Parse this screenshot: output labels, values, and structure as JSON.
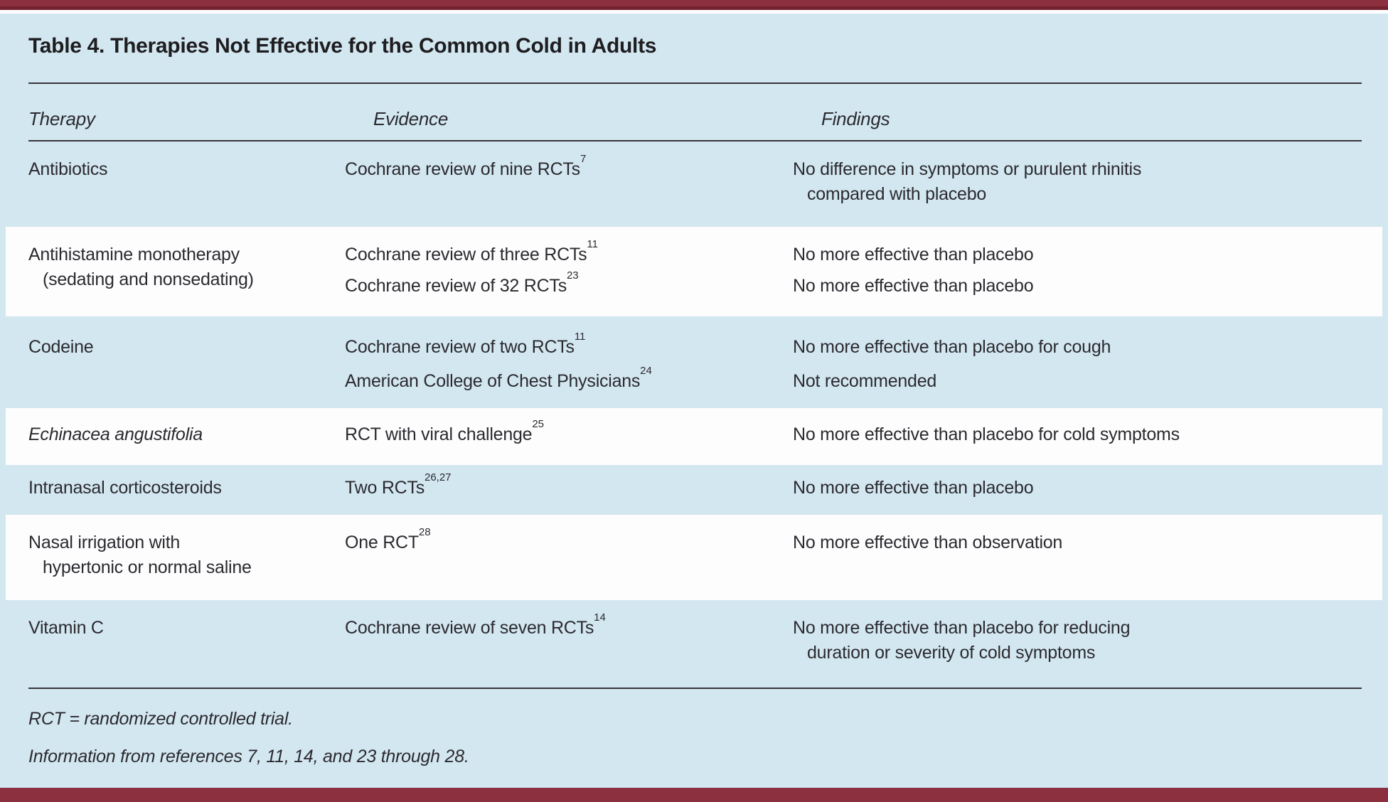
{
  "title": "Table 4. Therapies Not Effective for the Common Cold in Adults",
  "columns": {
    "therapy": "Therapy",
    "evidence": "Evidence",
    "findings": "Findings"
  },
  "rows": [
    {
      "therapy": [
        "Antibiotics"
      ],
      "entries": [
        {
          "evidence": "Cochrane review of nine RCTs",
          "evidence_ref": "7",
          "finding": [
            "No difference in symptoms or purulent rhinitis",
            "compared with placebo"
          ]
        }
      ]
    },
    {
      "therapy": [
        "Antihistamine monotherapy",
        "(sedating and nonsedating)"
      ],
      "entries": [
        {
          "evidence": "Cochrane review of three RCTs",
          "evidence_ref": "11",
          "finding": [
            "No more effective than placebo"
          ]
        },
        {
          "evidence": "Cochrane review of 32 RCTs",
          "evidence_ref": "23",
          "finding": [
            "No more effective than placebo"
          ]
        }
      ]
    },
    {
      "therapy": [
        "Codeine"
      ],
      "entries": [
        {
          "evidence": "Cochrane review of two RCTs",
          "evidence_ref": "11",
          "finding": [
            "No more effective than placebo for cough"
          ]
        },
        {
          "evidence": "American College of Chest Physicians",
          "evidence_ref": "24",
          "finding": [
            "Not recommended"
          ]
        }
      ]
    },
    {
      "therapy": [
        "Echinacea angustifolia"
      ],
      "therapy_style": "italic",
      "entries": [
        {
          "evidence": "RCT with viral challenge",
          "evidence_ref": "25",
          "finding": [
            "No more effective than placebo for cold symptoms"
          ]
        }
      ]
    },
    {
      "therapy": [
        "Intranasal corticosteroids"
      ],
      "entries": [
        {
          "evidence": "Two RCTs",
          "evidence_ref": "26,27",
          "finding": [
            "No more effective than placebo"
          ]
        }
      ]
    },
    {
      "therapy": [
        "Nasal irrigation with",
        "hypertonic or normal saline"
      ],
      "entries": [
        {
          "evidence": "One RCT",
          "evidence_ref": "28",
          "finding": [
            "No more effective than observation"
          ]
        }
      ]
    },
    {
      "therapy": [
        "Vitamin C"
      ],
      "entries": [
        {
          "evidence": "Cochrane review of seven RCTs",
          "evidence_ref": "14",
          "finding": [
            "No more effective than placebo for reducing",
            "duration or severity of cold symptoms"
          ]
        }
      ]
    }
  ],
  "footnotes": {
    "abbreviation": "RCT = randomized controlled trial.",
    "source": "Information from references 7, 11, 14, and 23 through 28."
  },
  "colors": {
    "accent_maroon": "#8c2f3e",
    "accent_maroon_dark": "#74222f",
    "panel_blue": "#d3e7f1",
    "row_white": "#fdfdfe"
  }
}
